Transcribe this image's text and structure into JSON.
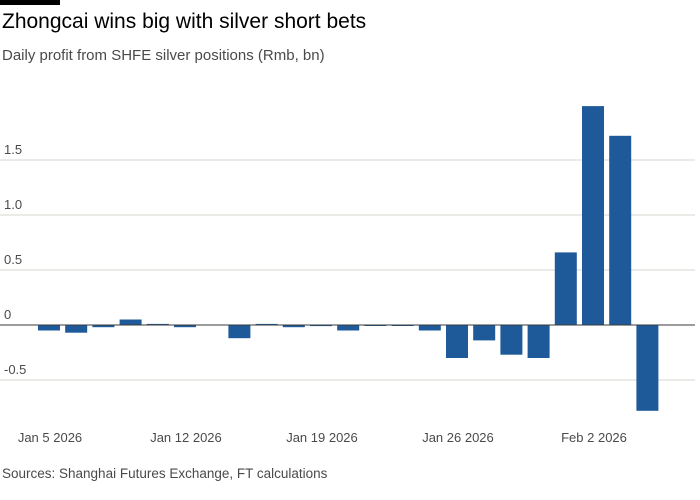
{
  "title": "Zhongcai wins big with silver short bets",
  "subtitle": "Daily profit from SHFE silver positions (Rmb, bn)",
  "source": "Sources: Shanghai Futures Exchange, FT calculations",
  "colors": {
    "bar": "#1e5a99",
    "grid": "#d9d4cf",
    "zero": "#3a3a3a"
  },
  "chart_data": {
    "type": "bar",
    "title": "Zhongcai wins big with silver short bets",
    "subtitle": "Daily profit from SHFE silver positions (Rmb, bn)",
    "categories": [
      "2026-01-05",
      "2026-01-06",
      "2026-01-07",
      "2026-01-08",
      "2026-01-09",
      "2026-01-12",
      "2026-01-13",
      "2026-01-14",
      "2026-01-15",
      "2026-01-16",
      "2026-01-19",
      "2026-01-20",
      "2026-01-21",
      "2026-01-22",
      "2026-01-23",
      "2026-01-26",
      "2026-01-27",
      "2026-01-28",
      "2026-01-29",
      "2026-01-30",
      "2026-02-02",
      "2026-02-03",
      "2026-02-04",
      "2026-02-05"
    ],
    "values": [
      -0.05,
      -0.07,
      -0.02,
      0.05,
      0.01,
      -0.02,
      0.0,
      -0.12,
      0.01,
      -0.02,
      -0.01,
      -0.05,
      -0.005,
      -0.005,
      -0.05,
      -0.3,
      -0.14,
      -0.27,
      -0.3,
      0.66,
      1.99,
      1.72,
      -0.78,
      0.0
    ],
    "x_tick_labels": [
      {
        "index": 0,
        "label": "Jan 5 2026"
      },
      {
        "index": 5,
        "label": "Jan 12 2026"
      },
      {
        "index": 10,
        "label": "Jan 19 2026"
      },
      {
        "index": 15,
        "label": "Jan 26 2026"
      },
      {
        "index": 20,
        "label": "Feb 2 2026"
      }
    ],
    "y_ticks": [
      -0.5,
      0,
      0.5,
      1.0,
      1.5
    ],
    "y_tick_labels": [
      "-0.5",
      "0",
      "0.5",
      "1.0",
      "1.5"
    ],
    "ylim": [
      -0.8,
      2.0
    ],
    "xlabel": "",
    "ylabel": "",
    "grid": true
  }
}
